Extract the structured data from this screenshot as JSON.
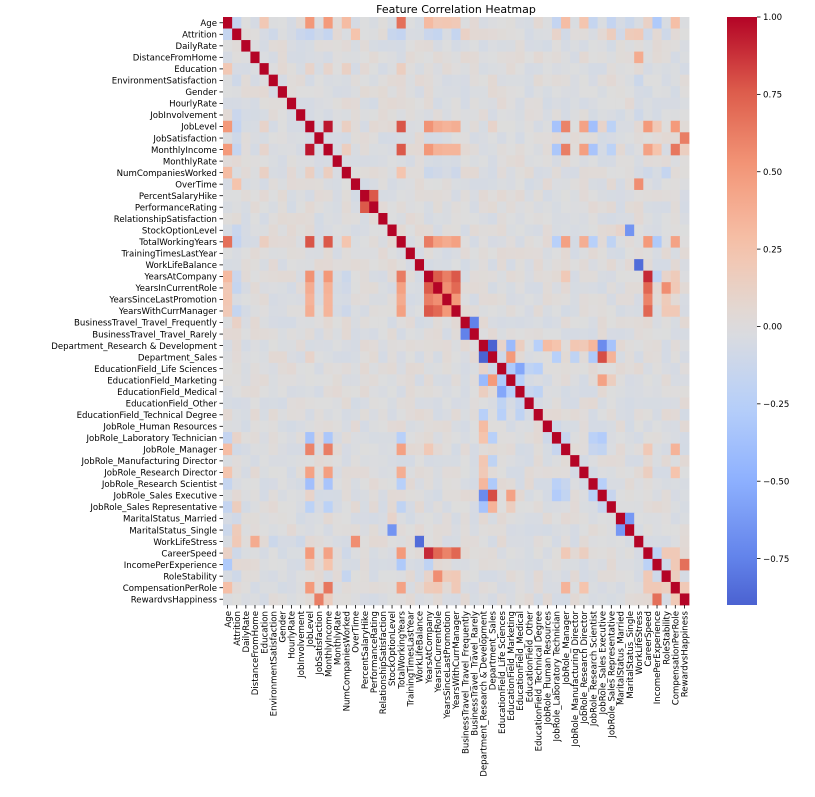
{
  "chart_data": {
    "type": "heatmap",
    "title": "Feature Correlation Heatmap",
    "xlabel": "",
    "ylabel": "",
    "colormap": "coolwarm",
    "vmin": -0.9,
    "vmax": 1.0,
    "colorbar": {
      "ticks": [
        1.0,
        0.75,
        0.5,
        0.25,
        0.0,
        -0.25,
        -0.5,
        -0.75
      ],
      "tick_labels": [
        "1.00",
        "0.75",
        "0.50",
        "0.25",
        "0.00",
        "−0.25",
        "−0.50",
        "−0.75"
      ],
      "placement": "right"
    },
    "labels": [
      "Age",
      "Attrition",
      "DailyRate",
      "DistanceFromHome",
      "Education",
      "EnvironmentSatisfaction",
      "Gender",
      "HourlyRate",
      "JobInvolvement",
      "JobLevel",
      "JobSatisfaction",
      "MonthlyIncome",
      "MonthlyRate",
      "NumCompaniesWorked",
      "OverTime",
      "PercentSalaryHike",
      "PerformanceRating",
      "RelationshipSatisfaction",
      "StockOptionLevel",
      "TotalWorkingYears",
      "TrainingTimesLastYear",
      "WorkLifeBalance",
      "YearsAtCompany",
      "YearsInCurrentRole",
      "YearsSinceLastPromotion",
      "YearsWithCurrManager",
      "BusinessTravel_Travel_Frequently",
      "BusinessTravel_Travel_Rarely",
      "Department_Research & Development",
      "Department_Sales",
      "EducationField_Life Sciences",
      "EducationField_Marketing",
      "EducationField_Medical",
      "EducationField_Other",
      "EducationField_Technical Degree",
      "JobRole_Human Resources",
      "JobRole_Laboratory Technician",
      "JobRole_Manager",
      "JobRole_Manufacturing Director",
      "JobRole_Research Director",
      "JobRole_Research Scientist",
      "JobRole_Sales Executive",
      "JobRole_Sales Representative",
      "MaritalStatus_Married",
      "MaritalStatus_Single",
      "WorkLifeStress",
      "CareerSpeed",
      "IncomePerExperience",
      "RoleStability",
      "CompensationPerRole",
      "RewardvsHappiness"
    ],
    "default_value": 0.0,
    "diagonal_value": 1.0,
    "pairs": [
      [
        "Age",
        "Attrition",
        -0.16
      ],
      [
        "Age",
        "Education",
        0.21
      ],
      [
        "Age",
        "JobLevel",
        0.51
      ],
      [
        "Age",
        "MonthlyIncome",
        0.5
      ],
      [
        "Age",
        "NumCompaniesWorked",
        0.3
      ],
      [
        "Age",
        "TotalWorkingYears",
        0.68
      ],
      [
        "Age",
        "YearsAtCompany",
        0.31
      ],
      [
        "Age",
        "YearsInCurrentRole",
        0.21
      ],
      [
        "Age",
        "YearsSinceLastPromotion",
        0.22
      ],
      [
        "Age",
        "YearsWithCurrManager",
        0.2
      ],
      [
        "Age",
        "JobRole_Laboratory Technician",
        -0.17
      ],
      [
        "Age",
        "JobRole_Manager",
        0.29
      ],
      [
        "Age",
        "JobRole_Research Director",
        0.24
      ],
      [
        "Age",
        "JobRole_Research Scientist",
        -0.16
      ],
      [
        "Age",
        "JobRole_Sales Representative",
        -0.17
      ],
      [
        "Age",
        "MaritalStatus_Single",
        -0.12
      ],
      [
        "Age",
        "IncomePerExperience",
        -0.3
      ],
      [
        "Age",
        "CompensationPerRole",
        0.28
      ],
      [
        "Age",
        "CareerSpeed",
        0.12
      ],
      [
        "Attrition",
        "EnvironmentSatisfaction",
        -0.1
      ],
      [
        "Attrition",
        "JobInvolvement",
        -0.13
      ],
      [
        "Attrition",
        "JobLevel",
        -0.17
      ],
      [
        "Attrition",
        "JobSatisfaction",
        -0.1
      ],
      [
        "Attrition",
        "MonthlyIncome",
        -0.16
      ],
      [
        "Attrition",
        "OverTime",
        0.25
      ],
      [
        "Attrition",
        "StockOptionLevel",
        -0.14
      ],
      [
        "Attrition",
        "TotalWorkingYears",
        -0.17
      ],
      [
        "Attrition",
        "YearsAtCompany",
        -0.13
      ],
      [
        "Attrition",
        "YearsInCurrentRole",
        -0.16
      ],
      [
        "Attrition",
        "YearsWithCurrManager",
        -0.16
      ],
      [
        "Attrition",
        "BusinessTravel_Travel_Frequently",
        0.12
      ],
      [
        "Attrition",
        "JobRole_Laboratory Technician",
        0.1
      ],
      [
        "Attrition",
        "JobRole_Manager",
        -0.08
      ],
      [
        "Attrition",
        "JobRole_Sales Representative",
        0.16
      ],
      [
        "Attrition",
        "MaritalStatus_Married",
        -0.09
      ],
      [
        "Attrition",
        "MaritalStatus_Single",
        0.18
      ],
      [
        "Attrition",
        "WorkLifeStress",
        0.2
      ],
      [
        "Attrition",
        "CareerSpeed",
        -0.1
      ],
      [
        "Attrition",
        "RoleStability",
        -0.1
      ],
      [
        "DistanceFromHome",
        "WorkLifeStress",
        0.4
      ],
      [
        "Education",
        "TotalWorkingYears",
        0.15
      ],
      [
        "Education",
        "JobLevel",
        0.1
      ],
      [
        "Education",
        "MonthlyIncome",
        0.09
      ],
      [
        "Education",
        "NumCompaniesWorked",
        0.13
      ],
      [
        "EnvironmentSatisfaction",
        "WorkLifeStress",
        -0.12
      ],
      [
        "JobInvolvement",
        "WorkLifeStress",
        -0.1
      ],
      [
        "JobLevel",
        "MonthlyIncome",
        0.95
      ],
      [
        "JobLevel",
        "NumCompaniesWorked",
        0.14
      ],
      [
        "JobLevel",
        "TotalWorkingYears",
        0.78
      ],
      [
        "JobLevel",
        "YearsAtCompany",
        0.53
      ],
      [
        "JobLevel",
        "YearsInCurrentRole",
        0.39
      ],
      [
        "JobLevel",
        "YearsSinceLastPromotion",
        0.35
      ],
      [
        "JobLevel",
        "YearsWithCurrManager",
        0.38
      ],
      [
        "JobLevel",
        "Department_Sales",
        0.1
      ],
      [
        "JobLevel",
        "JobRole_Laboratory Technician",
        -0.35
      ],
      [
        "JobLevel",
        "JobRole_Manager",
        0.6
      ],
      [
        "JobLevel",
        "JobRole_Research Director",
        0.45
      ],
      [
        "JobLevel",
        "JobRole_Research Scientist",
        -0.38
      ],
      [
        "JobLevel",
        "JobRole_Sales Executive",
        0.1
      ],
      [
        "JobLevel",
        "JobRole_Sales Representative",
        -0.22
      ],
      [
        "JobLevel",
        "CareerSpeed",
        0.5
      ],
      [
        "JobLevel",
        "IncomePerExperience",
        0.2
      ],
      [
        "JobLevel",
        "CompensationPerRole",
        0.5
      ],
      [
        "JobSatisfaction",
        "RewardvsHappiness",
        0.62
      ],
      [
        "MonthlyIncome",
        "NumCompaniesWorked",
        0.15
      ],
      [
        "MonthlyIncome",
        "TotalWorkingYears",
        0.77
      ],
      [
        "MonthlyIncome",
        "YearsAtCompany",
        0.51
      ],
      [
        "MonthlyIncome",
        "YearsInCurrentRole",
        0.36
      ],
      [
        "MonthlyIncome",
        "YearsSinceLastPromotion",
        0.34
      ],
      [
        "MonthlyIncome",
        "YearsWithCurrManager",
        0.34
      ],
      [
        "MonthlyIncome",
        "JobRole_Laboratory Technician",
        -0.32
      ],
      [
        "MonthlyIncome",
        "JobRole_Manager",
        0.62
      ],
      [
        "MonthlyIncome",
        "JobRole_Research Director",
        0.47
      ],
      [
        "MonthlyIncome",
        "JobRole_Research Scientist",
        -0.34
      ],
      [
        "MonthlyIncome",
        "JobRole_Sales Representative",
        -0.22
      ],
      [
        "MonthlyIncome",
        "CareerSpeed",
        0.45
      ],
      [
        "MonthlyIncome",
        "IncomePerExperience",
        0.25
      ],
      [
        "MonthlyIncome",
        "CompensationPerRole",
        0.65
      ],
      [
        "MonthlyIncome",
        "RewardvsHappiness",
        0.15
      ],
      [
        "NumCompaniesWorked",
        "TotalWorkingYears",
        0.24
      ],
      [
        "NumCompaniesWorked",
        "YearsAtCompany",
        -0.12
      ],
      [
        "NumCompaniesWorked",
        "YearsInCurrentRole",
        -0.09
      ],
      [
        "NumCompaniesWorked",
        "YearsWithCurrManager",
        -0.11
      ],
      [
        "NumCompaniesWorked",
        "CareerSpeed",
        -0.1
      ],
      [
        "NumCompaniesWorked",
        "RoleStability",
        -0.16
      ],
      [
        "OverTime",
        "WorkLifeStress",
        0.55
      ],
      [
        "PercentSalaryHike",
        "PerformanceRating",
        0.77
      ],
      [
        "StockOptionLevel",
        "MaritalStatus_Married",
        0.1
      ],
      [
        "StockOptionLevel",
        "MaritalStatus_Single",
        -0.65
      ],
      [
        "TotalWorkingYears",
        "YearsAtCompany",
        0.63
      ],
      [
        "TotalWorkingYears",
        "YearsInCurrentRole",
        0.46
      ],
      [
        "TotalWorkingYears",
        "YearsSinceLastPromotion",
        0.4
      ],
      [
        "TotalWorkingYears",
        "YearsWithCurrManager",
        0.46
      ],
      [
        "TotalWorkingYears",
        "JobRole_Laboratory Technician",
        -0.25
      ],
      [
        "TotalWorkingYears",
        "JobRole_Manager",
        0.46
      ],
      [
        "TotalWorkingYears",
        "JobRole_Research Director",
        0.38
      ],
      [
        "TotalWorkingYears",
        "JobRole_Research Scientist",
        -0.25
      ],
      [
        "TotalWorkingYears",
        "JobRole_Sales Representative",
        -0.2
      ],
      [
        "TotalWorkingYears",
        "CareerSpeed",
        0.5
      ],
      [
        "TotalWorkingYears",
        "IncomePerExperience",
        -0.3
      ],
      [
        "TotalWorkingYears",
        "CompensationPerRole",
        0.45
      ],
      [
        "WorkLifeBalance",
        "WorkLifeStress",
        -0.85
      ],
      [
        "YearsAtCompany",
        "YearsInCurrentRole",
        0.76
      ],
      [
        "YearsAtCompany",
        "YearsSinceLastPromotion",
        0.62
      ],
      [
        "YearsAtCompany",
        "YearsWithCurrManager",
        0.77
      ],
      [
        "YearsAtCompany",
        "JobRole_Manager",
        0.2
      ],
      [
        "YearsAtCompany",
        "CareerSpeed",
        0.9
      ],
      [
        "YearsAtCompany",
        "IncomePerExperience",
        -0.2
      ],
      [
        "YearsAtCompany",
        "RoleStability",
        0.1
      ],
      [
        "YearsAtCompany",
        "CompensationPerRole",
        0.18
      ],
      [
        "YearsInCurrentRole",
        "YearsSinceLastPromotion",
        0.55
      ],
      [
        "YearsInCurrentRole",
        "YearsWithCurrManager",
        0.71
      ],
      [
        "YearsInCurrentRole",
        "CareerSpeed",
        0.72
      ],
      [
        "YearsInCurrentRole",
        "RoleStability",
        0.55
      ],
      [
        "YearsInCurrentRole",
        "CompensationPerRole",
        0.2
      ],
      [
        "YearsSinceLastPromotion",
        "YearsWithCurrManager",
        0.51
      ],
      [
        "YearsSinceLastPromotion",
        "CareerSpeed",
        0.6
      ],
      [
        "YearsSinceLastPromotion",
        "RoleStability",
        0.18
      ],
      [
        "YearsWithCurrManager",
        "CareerSpeed",
        0.72
      ],
      [
        "YearsWithCurrManager",
        "RoleStability",
        0.2
      ],
      [
        "YearsWithCurrManager",
        "CompensationPerRole",
        0.2
      ],
      [
        "BusinessTravel_Travel_Frequently",
        "BusinessTravel_Travel_Rarely",
        -0.75
      ],
      [
        "Department_Research & Development",
        "Department_Sales",
        -0.9
      ],
      [
        "Department_Research & Development",
        "EducationField_Life Sciences",
        0.1
      ],
      [
        "Department_Research & Development",
        "EducationField_Marketing",
        -0.42
      ],
      [
        "Department_Research & Development",
        "EducationField_Medical",
        0.15
      ],
      [
        "Department_Research & Development",
        "EducationField_Technical Degree",
        -0.25
      ],
      [
        "Department_Research & Development",
        "JobRole_Human Resources",
        0.3
      ],
      [
        "Department_Research & Development",
        "JobRole_Laboratory Technician",
        0.25
      ],
      [
        "Department_Research & Development",
        "JobRole_Manufacturing Director",
        0.22
      ],
      [
        "Department_Research & Development",
        "JobRole_Research Director",
        0.2
      ],
      [
        "Department_Research & Development",
        "JobRole_Research Scientist",
        0.33
      ],
      [
        "Department_Research & Development",
        "JobRole_Sales Executive",
        -0.7
      ],
      [
        "Department_Research & Development",
        "JobRole_Sales Representative",
        -0.35
      ],
      [
        "Department_Sales",
        "EducationField_Marketing",
        0.5
      ],
      [
        "Department_Sales",
        "EducationField_Life Sciences",
        -0.1
      ],
      [
        "Department_Sales",
        "JobRole_Laboratory Technician",
        -0.25
      ],
      [
        "Department_Sales",
        "JobRole_Manufacturing Director",
        -0.2
      ],
      [
        "Department_Sales",
        "JobRole_Research Scientist",
        -0.3
      ],
      [
        "Department_Sales",
        "JobRole_Sales Executive",
        0.8
      ],
      [
        "Department_Sales",
        "JobRole_Sales Representative",
        0.35
      ],
      [
        "EducationField_Life Sciences",
        "EducationField_Marketing",
        -0.3
      ],
      [
        "EducationField_Life Sciences",
        "EducationField_Medical",
        -0.55
      ],
      [
        "EducationField_Life Sciences",
        "EducationField_Other",
        -0.2
      ],
      [
        "EducationField_Life Sciences",
        "EducationField_Technical Degree",
        -0.25
      ],
      [
        "EducationField_Marketing",
        "EducationField_Medical",
        -0.25
      ],
      [
        "EducationField_Marketing",
        "JobRole_Sales Executive",
        0.45
      ],
      [
        "EducationField_Marketing",
        "JobRole_Sales Representative",
        0.15
      ],
      [
        "EducationField_Medical",
        "EducationField_Technical Degree",
        -0.2
      ],
      [
        "EducationField_Medical",
        "EducationField_Other",
        -0.15
      ],
      [
        "JobRole_Human Resources",
        "JobRole_Laboratory Technician",
        -0.1
      ],
      [
        "JobRole_Laboratory Technician",
        "JobRole_Manager",
        -0.15
      ],
      [
        "JobRole_Laboratory Technician",
        "JobRole_Research Scientist",
        -0.23
      ],
      [
        "JobRole_Laboratory Technician",
        "JobRole_Sales Executive",
        -0.28
      ],
      [
        "JobRole_Manager",
        "JobRole_Research Scientist",
        -0.15
      ],
      [
        "JobRole_Manager",
        "JobRole_Sales Executive",
        -0.18
      ],
      [
        "JobRole_Manager",
        "CompensationPerRole",
        0.35
      ],
      [
        "JobRole_Manager",
        "CareerSpeed",
        0.2
      ],
      [
        "JobRole_Research Director",
        "CompensationPerRole",
        0.25
      ],
      [
        "JobRole_Research Director",
        "CareerSpeed",
        0.15
      ],
      [
        "JobRole_Research Scientist",
        "JobRole_Sales Executive",
        -0.25
      ],
      [
        "JobRole_Sales Executive",
        "JobRole_Sales Representative",
        -0.15
      ],
      [
        "MaritalStatus_Married",
        "MaritalStatus_Single",
        -0.63
      ],
      [
        "CareerSpeed",
        "IncomePerExperience",
        -0.22
      ],
      [
        "CareerSpeed",
        "RoleStability",
        0.2
      ],
      [
        "CareerSpeed",
        "CompensationPerRole",
        0.2
      ],
      [
        "IncomePerExperience",
        "RoleStability",
        -0.1
      ],
      [
        "IncomePerExperience",
        "CompensationPerRole",
        0.2
      ],
      [
        "IncomePerExperience",
        "RewardvsHappiness",
        0.68
      ],
      [
        "RoleStability",
        "CompensationPerRole",
        0.15
      ],
      [
        "CompensationPerRole",
        "RewardvsHappiness",
        0.2
      ]
    ],
    "noise_seed": 7,
    "noise_amplitude": 0.06
  }
}
